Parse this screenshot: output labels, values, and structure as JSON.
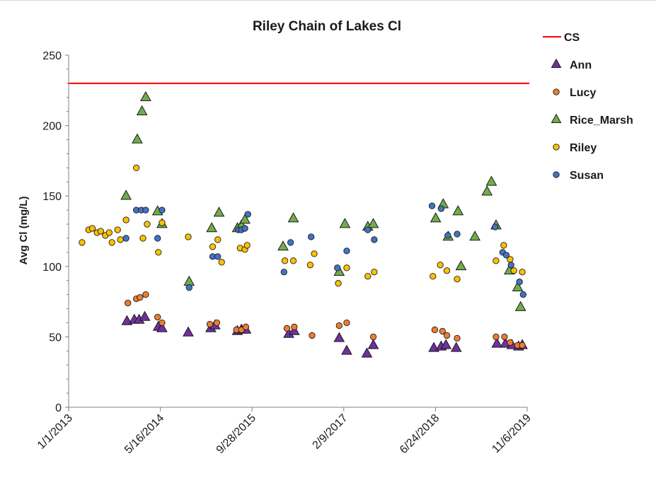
{
  "chart_data": {
    "type": "scatter",
    "title": "Riley Chain of Lakes Cl",
    "ylabel": "Avg Cl (mg/L)",
    "xlabel": "",
    "ylim": [
      0,
      250
    ],
    "yticks": [
      0,
      50,
      100,
      150,
      200,
      250
    ],
    "xlim": [
      "2013-01-01",
      "2019-11-06"
    ],
    "xticks": [
      "1/1/2013",
      "5/16/2014",
      "9/28/2015",
      "2/9/2017",
      "6/24/2018",
      "11/6/2019"
    ],
    "grid": false,
    "legend_position": "right",
    "reference_line": {
      "name": "CS",
      "y": 230,
      "color": "#ff0000"
    },
    "series": [
      {
        "name": "Ann",
        "marker": "triangle",
        "color": "#7030a0",
        "points": [
          [
            "2013-11-15",
            61
          ],
          [
            "2013-12-25",
            62
          ],
          [
            "2014-01-20",
            62
          ],
          [
            "2014-02-20",
            64
          ],
          [
            "2014-05-05",
            57
          ],
          [
            "2014-05-25",
            56
          ],
          [
            "2014-10-15",
            53
          ],
          [
            "2015-02-15",
            56
          ],
          [
            "2015-03-10",
            58
          ],
          [
            "2015-07-10",
            54
          ],
          [
            "2015-08-01",
            55
          ],
          [
            "2015-08-25",
            55
          ],
          [
            "2016-04-15",
            52
          ],
          [
            "2016-05-15",
            54
          ],
          [
            "2017-01-15",
            49
          ],
          [
            "2017-02-25",
            40
          ],
          [
            "2017-06-15",
            38
          ],
          [
            "2017-07-20",
            44
          ],
          [
            "2018-06-15",
            42
          ],
          [
            "2018-07-25",
            43
          ],
          [
            "2018-08-20",
            44
          ],
          [
            "2018-10-15",
            42
          ],
          [
            "2019-05-25",
            45
          ],
          [
            "2019-07-10",
            45
          ],
          [
            "2019-08-15",
            44
          ],
          [
            "2019-09-20",
            43
          ],
          [
            "2019-10-10",
            44
          ]
        ]
      },
      {
        "name": "Lucy",
        "marker": "circle",
        "color": "#ed7d31",
        "points": [
          [
            "2013-11-20",
            74
          ],
          [
            "2014-01-05",
            77
          ],
          [
            "2014-01-25",
            78
          ],
          [
            "2014-02-25",
            80
          ],
          [
            "2014-05-01",
            64
          ],
          [
            "2014-05-25",
            60
          ],
          [
            "2015-02-10",
            59
          ],
          [
            "2015-03-20",
            60
          ],
          [
            "2015-07-05",
            55
          ],
          [
            "2015-08-01",
            55
          ],
          [
            "2015-08-25",
            57
          ],
          [
            "2016-04-05",
            56
          ],
          [
            "2016-05-15",
            57
          ],
          [
            "2016-08-20",
            51
          ],
          [
            "2017-01-15",
            58
          ],
          [
            "2017-02-25",
            60
          ],
          [
            "2017-07-20",
            50
          ],
          [
            "2018-06-20",
            55
          ],
          [
            "2018-08-01",
            54
          ],
          [
            "2018-08-25",
            51
          ],
          [
            "2018-10-20",
            49
          ],
          [
            "2019-05-20",
            50
          ],
          [
            "2019-07-05",
            50
          ],
          [
            "2019-08-05",
            46
          ],
          [
            "2019-09-15",
            44
          ],
          [
            "2019-10-10",
            44
          ]
        ]
      },
      {
        "name": "Rice_Marsh",
        "marker": "triangle",
        "color": "#70ad47",
        "points": [
          [
            "2013-11-10",
            150
          ],
          [
            "2014-01-10",
            190
          ],
          [
            "2014-02-05",
            210
          ],
          [
            "2014-02-25",
            220
          ],
          [
            "2014-05-01",
            139
          ],
          [
            "2014-05-25",
            130
          ],
          [
            "2014-10-20",
            89
          ],
          [
            "2015-02-20",
            127
          ],
          [
            "2015-04-01",
            138
          ],
          [
            "2015-07-10",
            127
          ],
          [
            "2015-08-01",
            129
          ],
          [
            "2015-08-20",
            133
          ],
          [
            "2016-03-15",
            114
          ],
          [
            "2016-05-10",
            134
          ],
          [
            "2017-01-15",
            96
          ],
          [
            "2017-02-15",
            130
          ],
          [
            "2017-06-20",
            128
          ],
          [
            "2017-07-20",
            130
          ],
          [
            "2018-06-25",
            134
          ],
          [
            "2018-08-05",
            144
          ],
          [
            "2018-09-01",
            121
          ],
          [
            "2018-10-25",
            139
          ],
          [
            "2018-11-10",
            100
          ],
          [
            "2019-01-25",
            121
          ],
          [
            "2019-04-01",
            153
          ],
          [
            "2019-04-25",
            160
          ],
          [
            "2019-05-20",
            129
          ],
          [
            "2019-08-01",
            97
          ],
          [
            "2019-09-15",
            85
          ],
          [
            "2019-10-01",
            71
          ]
        ]
      },
      {
        "name": "Riley",
        "marker": "circle",
        "color": "#ffc000",
        "points": [
          [
            "2013-03-15",
            117
          ],
          [
            "2013-04-20",
            126
          ],
          [
            "2013-05-10",
            127
          ],
          [
            "2013-06-05",
            124
          ],
          [
            "2013-06-25",
            125
          ],
          [
            "2013-07-20",
            122
          ],
          [
            "2013-08-10",
            124
          ],
          [
            "2013-08-25",
            117
          ],
          [
            "2013-09-25",
            126
          ],
          [
            "2013-10-10",
            119
          ],
          [
            "2013-11-10",
            133
          ],
          [
            "2014-01-05",
            170
          ],
          [
            "2014-02-10",
            120
          ],
          [
            "2014-03-05",
            130
          ],
          [
            "2014-05-05",
            110
          ],
          [
            "2014-05-25",
            131
          ],
          [
            "2014-10-15",
            121
          ],
          [
            "2015-02-25",
            114
          ],
          [
            "2015-03-25",
            119
          ],
          [
            "2015-04-15",
            103
          ],
          [
            "2015-07-25",
            113
          ],
          [
            "2015-08-20",
            112
          ],
          [
            "2015-09-01",
            115
          ],
          [
            "2016-03-25",
            104
          ],
          [
            "2016-05-10",
            104
          ],
          [
            "2016-08-10",
            101
          ],
          [
            "2016-09-01",
            109
          ],
          [
            "2017-01-10",
            88
          ],
          [
            "2017-02-25",
            99
          ],
          [
            "2017-06-20",
            93
          ],
          [
            "2017-07-25",
            96
          ],
          [
            "2018-06-10",
            93
          ],
          [
            "2018-07-20",
            101
          ],
          [
            "2018-08-25",
            97
          ],
          [
            "2018-10-20",
            91
          ],
          [
            "2019-05-20",
            104
          ],
          [
            "2019-07-01",
            115
          ],
          [
            "2019-08-05",
            105
          ],
          [
            "2019-08-25",
            97
          ],
          [
            "2019-10-10",
            96
          ]
        ]
      },
      {
        "name": "Susan",
        "marker": "circle",
        "color": "#4472c4",
        "points": [
          [
            "2013-11-10",
            120
          ],
          [
            "2014-01-05",
            140
          ],
          [
            "2014-02-01",
            140
          ],
          [
            "2014-02-25",
            140
          ],
          [
            "2014-05-01",
            120
          ],
          [
            "2014-05-25",
            140
          ],
          [
            "2014-10-20",
            85
          ],
          [
            "2015-02-25",
            107
          ],
          [
            "2015-03-25",
            107
          ],
          [
            "2015-07-15",
            126
          ],
          [
            "2015-08-01",
            126
          ],
          [
            "2015-08-20",
            127
          ],
          [
            "2015-09-05",
            137
          ],
          [
            "2016-03-20",
            96
          ],
          [
            "2016-04-25",
            117
          ],
          [
            "2016-08-15",
            121
          ],
          [
            "2017-01-05",
            99
          ],
          [
            "2017-02-25",
            111
          ],
          [
            "2017-06-20",
            126
          ],
          [
            "2017-07-25",
            119
          ],
          [
            "2018-06-05",
            143
          ],
          [
            "2018-07-25",
            141
          ],
          [
            "2018-08-30",
            122
          ],
          [
            "2018-10-20",
            123
          ],
          [
            "2019-05-15",
            128
          ],
          [
            "2019-06-25",
            110
          ],
          [
            "2019-07-15",
            108
          ],
          [
            "2019-08-10",
            101
          ],
          [
            "2019-09-25",
            89
          ],
          [
            "2019-10-15",
            80
          ]
        ]
      }
    ]
  }
}
